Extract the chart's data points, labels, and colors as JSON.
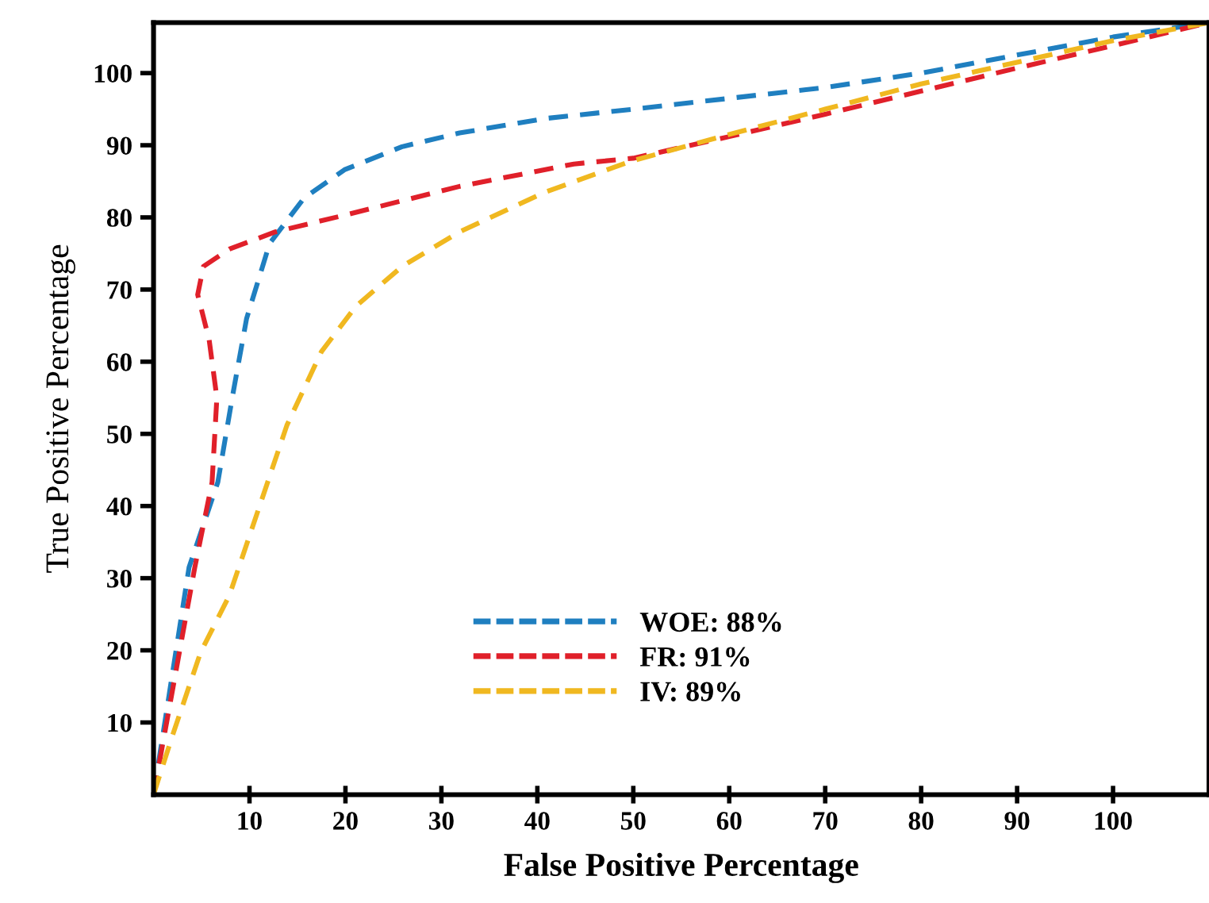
{
  "chart_data": {
    "type": "line",
    "xlabel": "False Positive Percentage",
    "ylabel": "True Positive Percentage",
    "xlim": [
      0,
      110
    ],
    "ylim": [
      0,
      107
    ],
    "xticks": [
      10,
      20,
      30,
      40,
      50,
      60,
      70,
      80,
      90,
      100
    ],
    "yticks": [
      10,
      20,
      30,
      40,
      50,
      60,
      70,
      80,
      90,
      100
    ],
    "grid": false,
    "legend": "bottom",
    "line_style": "dashed",
    "marker": "none",
    "series": [
      {
        "name": "WOE: 88%",
        "color": "#1f7fc0",
        "x": [
          0,
          3.7,
          6.7,
          8.2,
          9.7,
          12.1,
          15.7,
          19.9,
          25.9,
          31.9,
          40.8,
          50,
          60,
          70,
          80,
          90,
          100,
          110
        ],
        "values": [
          0,
          31.5,
          43.3,
          55,
          66,
          76.4,
          82.7,
          86.6,
          89.8,
          91.7,
          93.7,
          95,
          96.5,
          98,
          100,
          102.5,
          105,
          107
        ]
      },
      {
        "name": "FR: 91%",
        "color": "#e0202a",
        "x": [
          0,
          4.3,
          6.1,
          6.6,
          5.8,
          4.6,
          5.2,
          7.9,
          12.7,
          19.9,
          31.9,
          43.8,
          50,
          60,
          70,
          80,
          90,
          100,
          110
        ],
        "values": [
          0,
          31.5,
          43.3,
          55,
          63,
          69.3,
          73.2,
          75.6,
          78,
          80.3,
          84.3,
          87.4,
          88.2,
          91.2,
          94.3,
          97.5,
          100.7,
          103.8,
          107
        ]
      },
      {
        "name": "IV: 89%",
        "color": "#f0b820",
        "x": [
          0,
          1.9,
          4.9,
          7.9,
          10.9,
          13.9,
          17.5,
          21.1,
          25.9,
          31.9,
          40.8,
          49.8,
          60,
          70,
          80,
          90,
          100,
          110
        ],
        "values": [
          0,
          7.9,
          19.7,
          27.6,
          39.4,
          51.2,
          61.4,
          67.7,
          73.2,
          78,
          83.5,
          87.8,
          91.5,
          95,
          98.5,
          101.5,
          104.5,
          107
        ]
      }
    ]
  }
}
